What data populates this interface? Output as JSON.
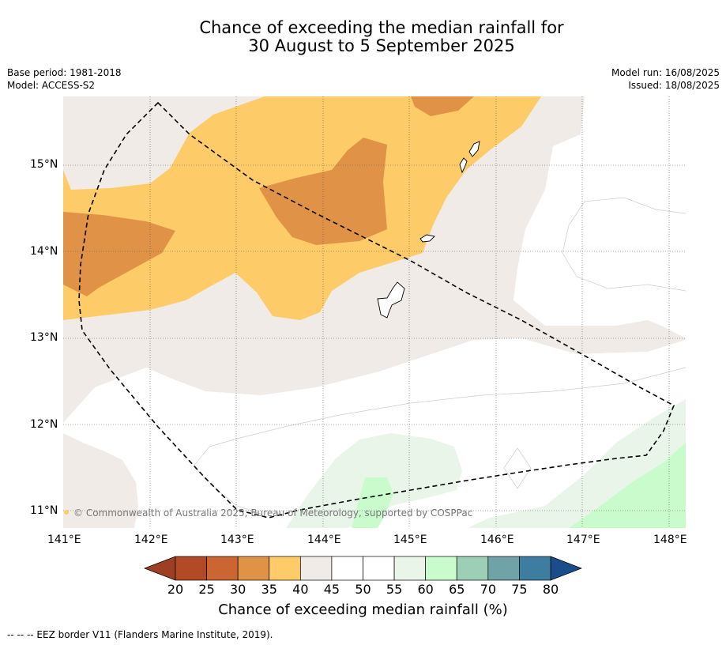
{
  "title": {
    "line1": "Chance of exceeding the median rainfall for",
    "line2": "30 August to 5 September 2025"
  },
  "meta_left": {
    "base_period": "Base period: 1981-2018",
    "model": "Model: ACCESS-S2"
  },
  "meta_right": {
    "model_run": "Model run: 16/08/2025",
    "issued": "Issued: 18/08/2025"
  },
  "map": {
    "lat_labels": [
      "15°N",
      "14°N",
      "13°N",
      "12°N",
      "11°N"
    ],
    "lon_labels": [
      "141°E",
      "142°E",
      "143°E",
      "144°E",
      "145°E",
      "146°E",
      "147°E",
      "148°E"
    ],
    "copyright": "© Commonwealth of Australia 2025, Bureau of Meteorology, supported by COSPPac"
  },
  "colorbar": {
    "ticks": [
      "20",
      "25",
      "30",
      "35",
      "40",
      "45",
      "50",
      "55",
      "60",
      "65",
      "70",
      "75",
      "80"
    ],
    "colors": [
      "#b24a26",
      "#cb6531",
      "#e09346",
      "#fdcb67",
      "#f0ebe6",
      "#ffffff",
      "#ffffff",
      "#e9f5e9",
      "#c9fbcc",
      "#9ccfb6",
      "#6fa3a8",
      "#3d7ea0"
    ],
    "under_color": "#9c3f24",
    "over_color": "#1a4e8a",
    "title": "Chance of exceeding median rainfall (%)"
  },
  "footnote": "--  --  -- EEZ border V11 (Flanders Marine Institute, 2019)."
}
